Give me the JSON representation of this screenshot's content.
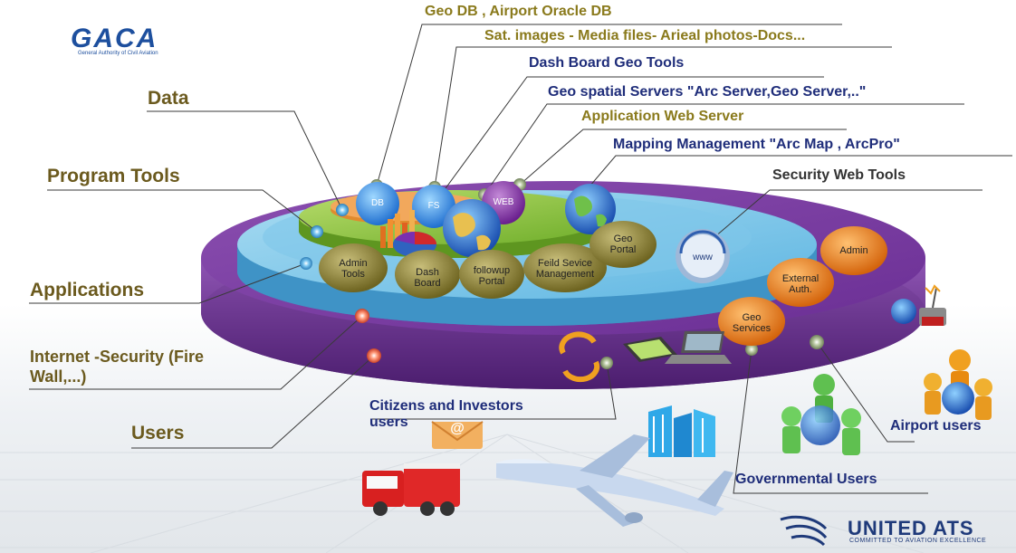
{
  "logo": {
    "brand": "GACA",
    "subtitle": "General Authority of Civil Aviation"
  },
  "footer_logo": {
    "brand": "UNITED ATS",
    "tagline": "COMMITTED TO AVIATION EXCELLENCE"
  },
  "left_labels": {
    "data": "Data",
    "program_tools": "Program Tools",
    "applications": "Applications",
    "internet_security_line1": "Internet -Security (Fire",
    "internet_security_line2": "Wall,...)",
    "users": "Users"
  },
  "top_labels": {
    "geo_db": "Geo DB ,  Airport Oracle DB",
    "sat_images": "Sat. images - Media files- Arieal photos-Docs...",
    "dashboard_tools": "Dash Board Geo Tools",
    "geo_spatial_servers": "Geo spatial Servers  \"Arc Server,Geo Server,..\"",
    "app_web_server": "Application Web Server",
    "mapping_management": "Mapping Management \"Arc Map , ArcPro\"",
    "security_web_tools": "Security Web  Tools"
  },
  "bottom_labels": {
    "citizens_line1": "Citizens and Investors",
    "citizens_line2": "users",
    "airport_users": "Airport users",
    "governmental_users": "Governmental Users"
  },
  "nodes": {
    "db": "DB",
    "fs": "FS",
    "web": "WEB",
    "admin_tools_1": "Admin",
    "admin_tools_2": "Tools",
    "dash_board_1": "Dash",
    "dash_board_2": "Board",
    "followup_1": "followup",
    "followup_2": "Portal",
    "field_service_1": "Feild Sevice",
    "field_service_2": "Management",
    "geo_portal_1": "Geo",
    "geo_portal_2": "Portal",
    "www": "www",
    "admin": "Admin",
    "external_auth_1": "External",
    "external_auth_2": "Auth.",
    "geo_services_1": "Geo",
    "geo_services_2": "Services",
    "email": "@"
  }
}
